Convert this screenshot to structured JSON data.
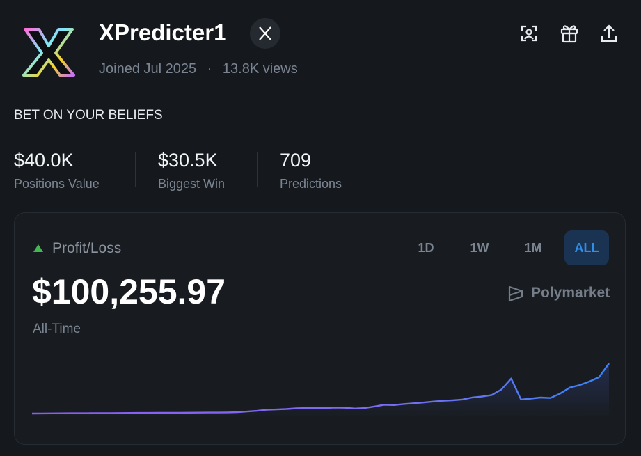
{
  "header": {
    "name": "XPredicter1",
    "joined": "Joined Jul 2025",
    "separator": "·",
    "views": "13.8K views"
  },
  "bio": "BET ON YOUR BELIEFS",
  "stats": [
    {
      "value": "$40.0K",
      "label": "Positions Value"
    },
    {
      "value": "$30.5K",
      "label": "Biggest Win"
    },
    {
      "value": "709",
      "label": "Predictions"
    }
  ],
  "pnl": {
    "label": "Profit/Loss",
    "value": "$100,255.97",
    "period": "All-Time",
    "ranges": [
      "1D",
      "1W",
      "1M",
      "ALL"
    ],
    "selected_range": 3,
    "brand": "Polymarket",
    "chart": {
      "type": "line",
      "values": [
        0,
        200,
        300,
        400,
        500,
        600,
        700,
        800,
        900,
        1000,
        1100,
        1200,
        1300,
        1400,
        1500,
        1600,
        1700,
        1800,
        1900,
        2000,
        2200,
        2800,
        4000,
        5500,
        7500,
        8200,
        9000,
        10500,
        11000,
        11500,
        11200,
        12000,
        11500,
        10000,
        11000,
        14000,
        17500,
        17000,
        19000,
        20500,
        22000,
        24000,
        25500,
        26500,
        28000,
        32000,
        34000,
        37000,
        48000,
        70000,
        28000,
        30000,
        32000,
        31000,
        40000,
        52000,
        57000,
        64000,
        73000,
        100255.97
      ]
    }
  }
}
